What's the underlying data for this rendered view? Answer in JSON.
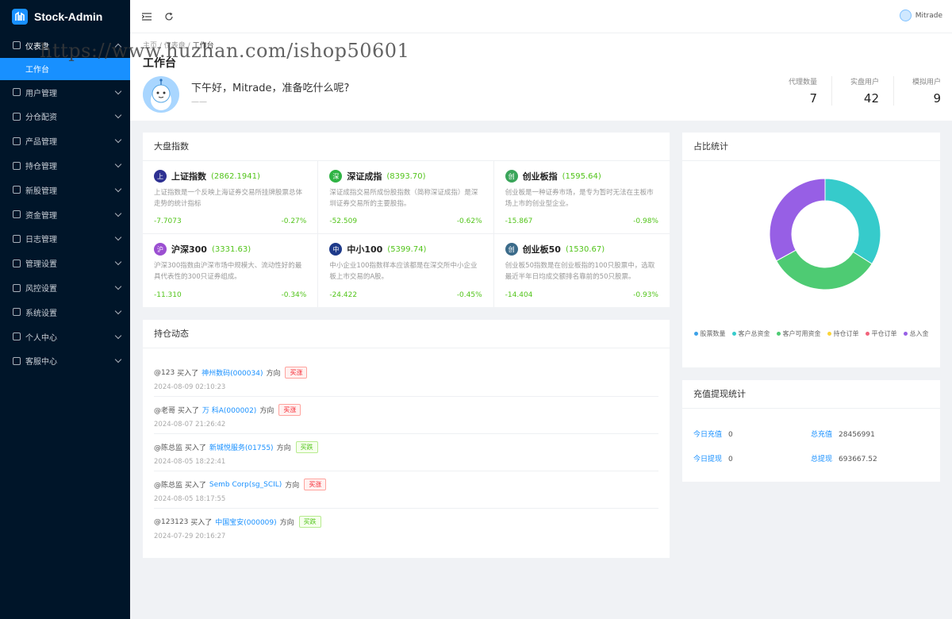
{
  "app": {
    "name": "Stock-Admin"
  },
  "sidebar": {
    "items": [
      {
        "label": "仪表盘",
        "icon": "dashboard-icon",
        "open": true
      },
      {
        "label": "用户管理",
        "icon": "users-icon"
      },
      {
        "label": "分仓配资",
        "icon": "split-icon"
      },
      {
        "label": "产品管理",
        "icon": "chart-bar-icon"
      },
      {
        "label": "持仓管理",
        "icon": "holdings-icon"
      },
      {
        "label": "新股管理",
        "icon": "ipo-icon"
      },
      {
        "label": "资金管理",
        "icon": "money-icon"
      },
      {
        "label": "日志管理",
        "icon": "log-icon"
      },
      {
        "label": "管理设置",
        "icon": "settings-grid-icon"
      },
      {
        "label": "风控设置",
        "icon": "warning-icon"
      },
      {
        "label": "系统设置",
        "icon": "gear-icon"
      },
      {
        "label": "个人中心",
        "icon": "person-icon"
      },
      {
        "label": "客服中心",
        "icon": "headset-icon"
      }
    ],
    "submenu_active": "工作台"
  },
  "topbar": {
    "user": "Mitrade"
  },
  "breadcrumb": [
    "主页",
    "仪表盘",
    "工作台"
  ],
  "page": {
    "title": "工作台",
    "greeting": "下午好，Mitrade，准备吃什么呢?",
    "greeting_sub": "——",
    "stats": [
      {
        "label": "代理数量",
        "value": "7"
      },
      {
        "label": "实盘用户",
        "value": "42"
      },
      {
        "label": "模拟用户",
        "value": "9"
      }
    ]
  },
  "market": {
    "title": "大盘指数",
    "indices": [
      {
        "badge": "上",
        "color": "#2e3192",
        "name": "上证指数",
        "value": "(2862.1941)",
        "desc": "上证指数是一个反映上海证券交易所挂牌股票总体走势的统计指标",
        "change": "-7.7073",
        "pct": "-0.27%"
      },
      {
        "badge": "深",
        "color": "#2fb344",
        "name": "深证成指",
        "value": "(8393.70)",
        "desc": "深证成指交易所成份股指数（简称深证成指）是深圳证券交易所的主要股指。",
        "change": "-52.509",
        "pct": "-0.62%"
      },
      {
        "badge": "创",
        "color": "#3aa55a",
        "name": "创业板指",
        "value": "(1595.64)",
        "desc": "创业板是一种证券市场，是专为暂时无法在主板市场上市的创业型企业。",
        "change": "-15.867",
        "pct": "-0.98%"
      },
      {
        "badge": "沪",
        "color": "#9b4fd1",
        "name": "沪深300",
        "value": "(3331.63)",
        "desc": "沪深300指数由沪深市场中规模大、流动性好的最具代表性的300只证券组成。",
        "change": "-11.310",
        "pct": "-0.34%"
      },
      {
        "badge": "中",
        "color": "#1e3a8a",
        "name": "中小100",
        "value": "(5399.74)",
        "desc": "中小企业100指数样本应该都是在深交所中小企业板上市交易的A股。",
        "change": "-24.422",
        "pct": "-0.45%"
      },
      {
        "badge": "创",
        "color": "#3b6b8a",
        "name": "创业板50",
        "value": "(1530.67)",
        "desc": "创业板50指数是在创业板指的100只股票中，选取最近半年日均成交额排名靠前的50只股票。",
        "change": "-14.404",
        "pct": "-0.93%"
      }
    ]
  },
  "feed": {
    "title": "持仓动态",
    "items": [
      {
        "user": "@123",
        "action": "买入了",
        "stock": "神州数码(000034)",
        "dir": "方向",
        "tag": "买涨",
        "tag_type": "red",
        "time": "2024-08-09 02:10:23"
      },
      {
        "user": "@老哥",
        "action": "买入了",
        "stock": "万 科A(000002)",
        "dir": "方向",
        "tag": "买涨",
        "tag_type": "red",
        "time": "2024-08-07 21:26:42"
      },
      {
        "user": "@陈总监",
        "action": "买入了",
        "stock": "新城悦服务(01755)",
        "dir": "方向",
        "tag": "买跌",
        "tag_type": "green",
        "time": "2024-08-05 18:22:41"
      },
      {
        "user": "@陈总监",
        "action": "买入了",
        "stock": "Semb Corp(sg_SCIL)",
        "dir": "方向",
        "tag": "买涨",
        "tag_type": "red",
        "time": "2024-08-05 18:17:55"
      },
      {
        "user": "@123123",
        "action": "买入了",
        "stock": "中国宝安(000009)",
        "dir": "方向",
        "tag": "买跌",
        "tag_type": "green",
        "time": "2024-07-29 20:16:27"
      }
    ]
  },
  "ratio": {
    "title": "占比统计",
    "legend": [
      {
        "label": "股票数量",
        "color": "#3ba1e8"
      },
      {
        "label": "客户总资金",
        "color": "#36cbcb"
      },
      {
        "label": "客户可用资金",
        "color": "#4ecb73"
      },
      {
        "label": "持仓订单",
        "color": "#fbd437"
      },
      {
        "label": "平仓订单",
        "color": "#f2637b"
      },
      {
        "label": "总入金",
        "color": "#975fe5"
      }
    ]
  },
  "chart_data": {
    "type": "pie",
    "donut": true,
    "categories": [
      "股票数量",
      "客户总资金",
      "客户可用资金",
      "持仓订单",
      "平仓订单",
      "总入金"
    ],
    "values": [
      0,
      34,
      33,
      0,
      0,
      33
    ],
    "colors": [
      "#3ba1e8",
      "#36cbcb",
      "#4ecb73",
      "#fbd437",
      "#f2637b",
      "#975fe5"
    ],
    "legend": "bottom"
  },
  "funds": {
    "title": "充值提现统计",
    "today_recharge_label": "今日充值",
    "today_recharge": "0",
    "total_recharge_label": "总充值",
    "total_recharge": "28456991",
    "today_withdraw_label": "今日提现",
    "today_withdraw": "0",
    "total_withdraw_label": "总提现",
    "total_withdraw": "693667.52"
  },
  "watermark": "https://www.huzhan.com/ishop50601"
}
